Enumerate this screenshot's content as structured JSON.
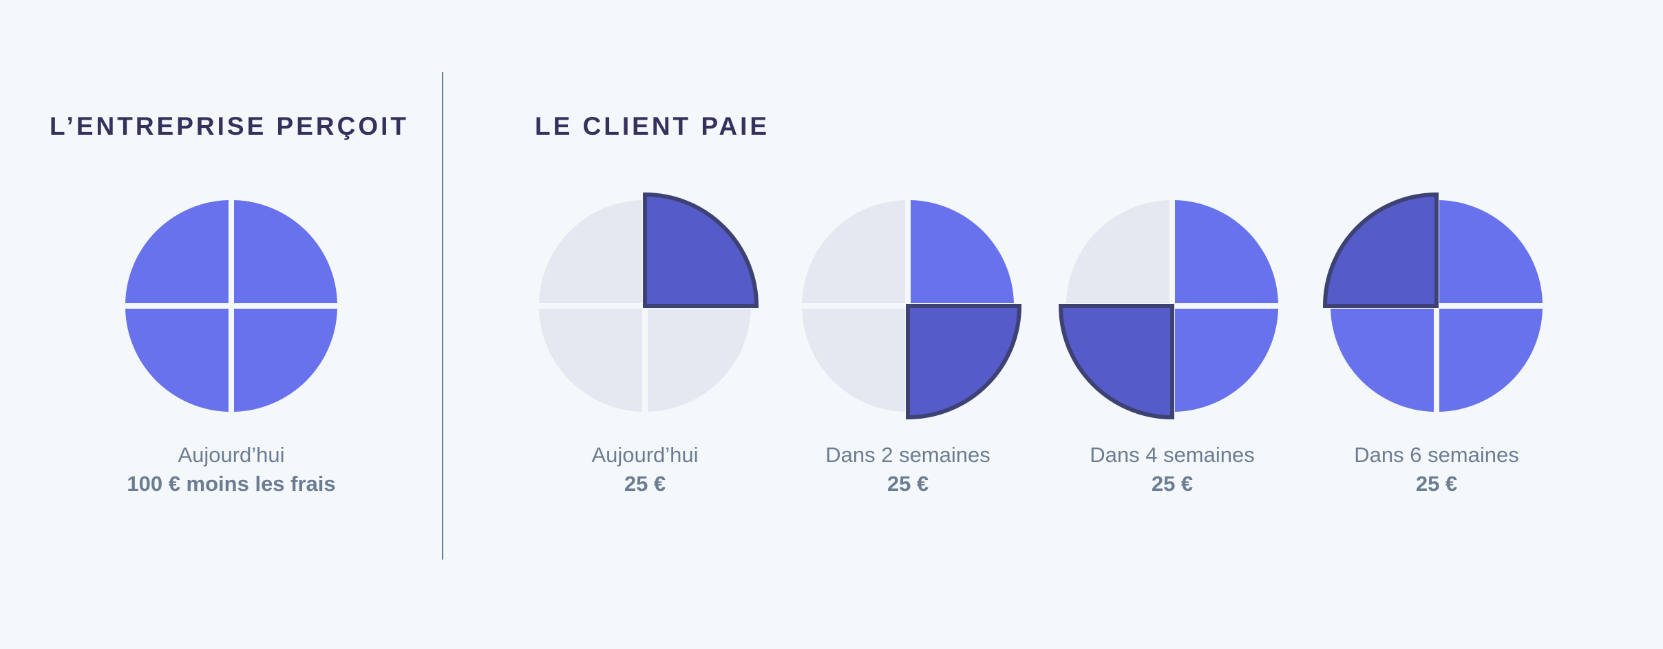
{
  "receives": {
    "title": "L’ENTREPRISE PERÇOIT",
    "item": {
      "label": "Aujourd’hui",
      "amount": "100 € moins les frais"
    }
  },
  "pays": {
    "title": "LE CLIENT PAIE",
    "items": [
      {
        "label": "Aujourd’hui",
        "amount": "25 €"
      },
      {
        "label": "Dans 2 semaines",
        "amount": "25 €"
      },
      {
        "label": "Dans 4 semaines",
        "amount": "25 €"
      },
      {
        "label": "Dans 6 semaines",
        "amount": "25 €"
      }
    ]
  }
}
